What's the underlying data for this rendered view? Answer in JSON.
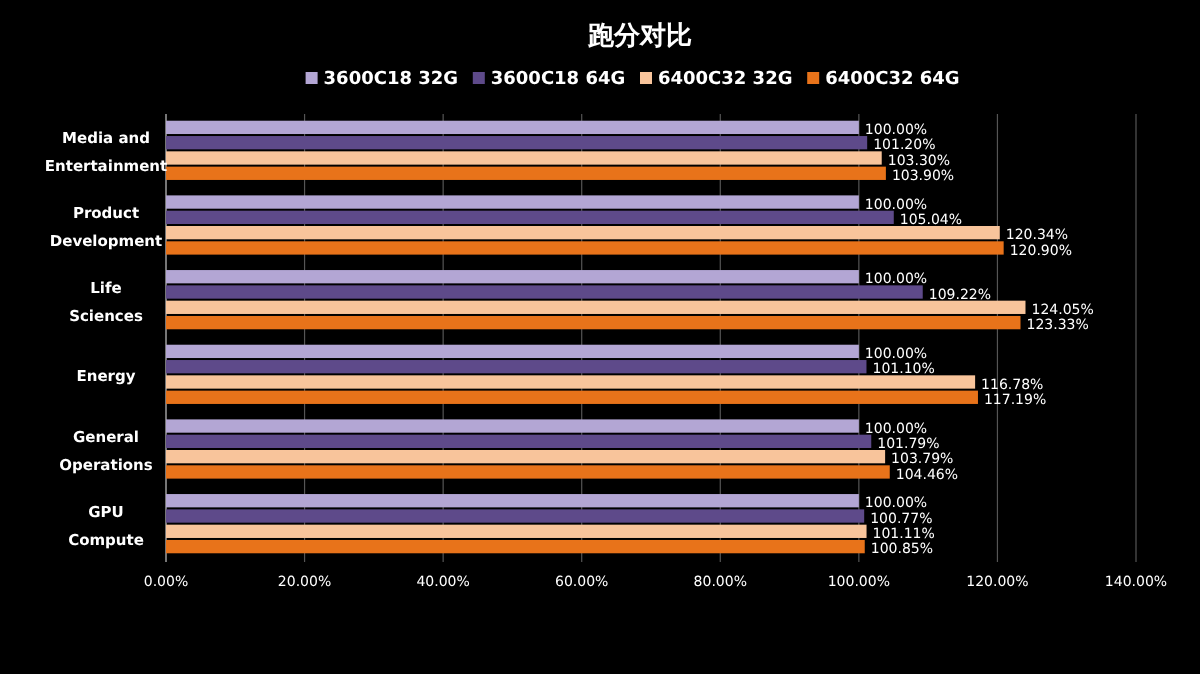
{
  "chart_data": {
    "type": "bar",
    "orientation": "horizontal",
    "title": "跑分对比",
    "categories": [
      "Media and Entertainment",
      "Product Development",
      "Life Sciences",
      "Energy",
      "General Operations",
      "GPU Compute"
    ],
    "series": [
      {
        "name": "3600C18 32G",
        "color": "#b3a6d4",
        "values": [
          100,
          100,
          100,
          100,
          100,
          100
        ],
        "value_labels": [
          "100.00%",
          "100.00%",
          "100.00%",
          "100.00%",
          "100.00%",
          "100.00%"
        ]
      },
      {
        "name": "3600C18 64G",
        "color": "#5e4a8a",
        "values": [
          101.2,
          105.04,
          109.22,
          101.1,
          101.79,
          100.77
        ],
        "value_labels": [
          "101.20%",
          "105.04%",
          "109.22%",
          "101.10%",
          "101.79%",
          "100.77%"
        ]
      },
      {
        "name": "6400C32 32G",
        "color": "#f8c49b",
        "values": [
          103.3,
          120.34,
          124.05,
          116.78,
          103.79,
          101.11
        ],
        "value_labels": [
          "103.30%",
          "120.34%",
          "124.05%",
          "116.78%",
          "103.79%",
          "101.11%"
        ]
      },
      {
        "name": "6400C32 64G",
        "color": "#e8731a",
        "values": [
          103.9,
          120.9,
          123.33,
          117.19,
          104.46,
          100.85
        ],
        "value_labels": [
          "103.90%",
          "120.90%",
          "123.33%",
          "117.19%",
          "104.46%",
          "100.85%"
        ]
      }
    ],
    "xlim": [
      0,
      140
    ],
    "xticks": [
      {
        "value": 0,
        "label": "0.00%"
      },
      {
        "value": 20,
        "label": "20.00%"
      },
      {
        "value": 40,
        "label": "40.00%"
      },
      {
        "value": 60,
        "label": "60.00%"
      },
      {
        "value": 80,
        "label": "80.00%"
      },
      {
        "value": 100,
        "label": "100.00%"
      },
      {
        "value": 120,
        "label": "120.00%"
      },
      {
        "value": 140,
        "label": "140.00%"
      }
    ],
    "grid": "x",
    "legend": "top"
  }
}
